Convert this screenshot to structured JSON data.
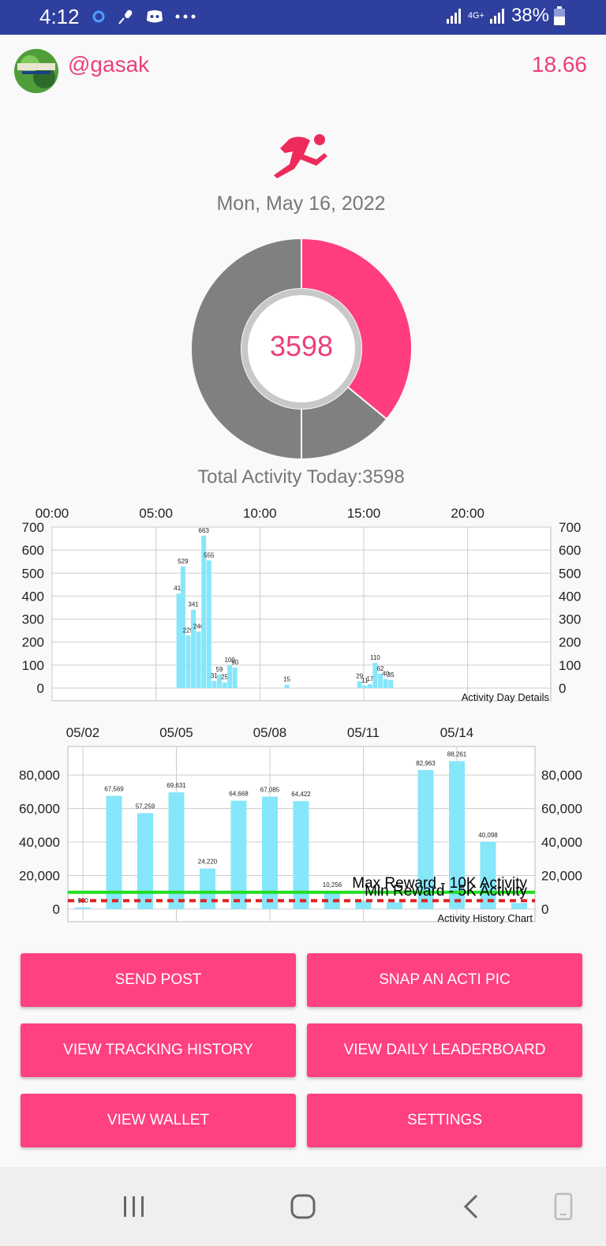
{
  "status_bar": {
    "time": "4:12",
    "network": "4G+",
    "battery": "38%"
  },
  "header": {
    "username": "@gasak",
    "balance": "18.66"
  },
  "summary": {
    "date": "Mon, May 16, 2022",
    "center_value": "3598",
    "total_label": "Total Activity Today:3598",
    "donut_segments": [
      {
        "value": 3598,
        "color": "#ff3d7f"
      },
      {
        "value": 1402,
        "color": "#808080"
      },
      {
        "value": 5000,
        "color": "#808080"
      }
    ]
  },
  "chart_data": [
    {
      "type": "bar",
      "title": "Activity Day Details",
      "x_ticks": [
        "00:00",
        "05:00",
        "10:00",
        "15:00",
        "20:00"
      ],
      "y_ticks": [
        "700",
        "600",
        "500",
        "400",
        "300",
        "200",
        "100",
        "0"
      ],
      "ylim": [
        0,
        700
      ],
      "xlim_hours": [
        0,
        24
      ],
      "bars": [
        {
          "x": 6.1,
          "value": 411,
          "label": "411"
        },
        {
          "x": 6.3,
          "value": 529,
          "label": "529"
        },
        {
          "x": 6.55,
          "value": 229,
          "label": "229"
        },
        {
          "x": 6.8,
          "value": 341,
          "label": "341"
        },
        {
          "x": 7.05,
          "value": 246,
          "label": "246"
        },
        {
          "x": 7.3,
          "value": 663,
          "label": "663"
        },
        {
          "x": 7.55,
          "value": 555,
          "label": "555"
        },
        {
          "x": 7.8,
          "value": 31,
          "label": "31"
        },
        {
          "x": 8.05,
          "value": 59,
          "label": "59"
        },
        {
          "x": 8.3,
          "value": 25,
          "label": "25"
        },
        {
          "x": 8.55,
          "value": 100,
          "label": "100"
        },
        {
          "x": 8.8,
          "value": 90,
          "label": "90"
        },
        {
          "x": 11.3,
          "value": 15,
          "label": "15"
        },
        {
          "x": 14.8,
          "value": 29,
          "label": "29"
        },
        {
          "x": 15.05,
          "value": 11,
          "label": "11"
        },
        {
          "x": 15.3,
          "value": 17,
          "label": "17"
        },
        {
          "x": 15.55,
          "value": 110,
          "label": "110"
        },
        {
          "x": 15.8,
          "value": 62,
          "label": "62"
        },
        {
          "x": 16.05,
          "value": 40,
          "label": "40"
        },
        {
          "x": 16.3,
          "value": 35,
          "label": "35"
        }
      ]
    },
    {
      "type": "bar",
      "title": "Activity History Chart",
      "x_ticks": [
        "05/02",
        "05/05",
        "05/08",
        "05/11",
        "05/14"
      ],
      "y_ticks": [
        "80,000",
        "60,000",
        "40,000",
        "20,000",
        "0"
      ],
      "ylim": [
        0,
        97000
      ],
      "days": [
        "05/02",
        "05/03",
        "05/04",
        "05/05",
        "05/06",
        "05/07",
        "05/08",
        "05/09",
        "05/10",
        "05/11",
        "05/12",
        "05/13",
        "05/14",
        "05/15",
        "05/16"
      ],
      "values": [
        930,
        67569,
        57259,
        69631,
        24220,
        64668,
        67085,
        64422,
        10256,
        5000,
        4000,
        82963,
        88261,
        40098,
        3598
      ],
      "labels": [
        "930",
        "67,569",
        "57,259",
        "69,631",
        "24,220",
        "64,668",
        "67,085",
        "64,422",
        "10,256",
        "",
        "",
        "82,963",
        "88,261",
        "40,098",
        ""
      ],
      "lines": [
        {
          "name": "Max Reward - 10K Activity",
          "value": 10000,
          "color": "#22dd22",
          "style": "solid"
        },
        {
          "name": "Min Reward - 5K Activity",
          "value": 5000,
          "color": "#dd2222",
          "style": "dashed"
        }
      ]
    }
  ],
  "buttons": {
    "send_post": "SEND POST",
    "snap_pic": "SNAP AN ACTI PIC",
    "tracking_history": "VIEW TRACKING HISTORY",
    "daily_leaderboard": "VIEW DAILY LEADERBOARD",
    "wallet": "VIEW WALLET",
    "settings": "SETTINGS"
  },
  "colors": {
    "accent": "#ff4081",
    "bar": "#86e6fa",
    "status_bar": "#2f3f9e"
  }
}
